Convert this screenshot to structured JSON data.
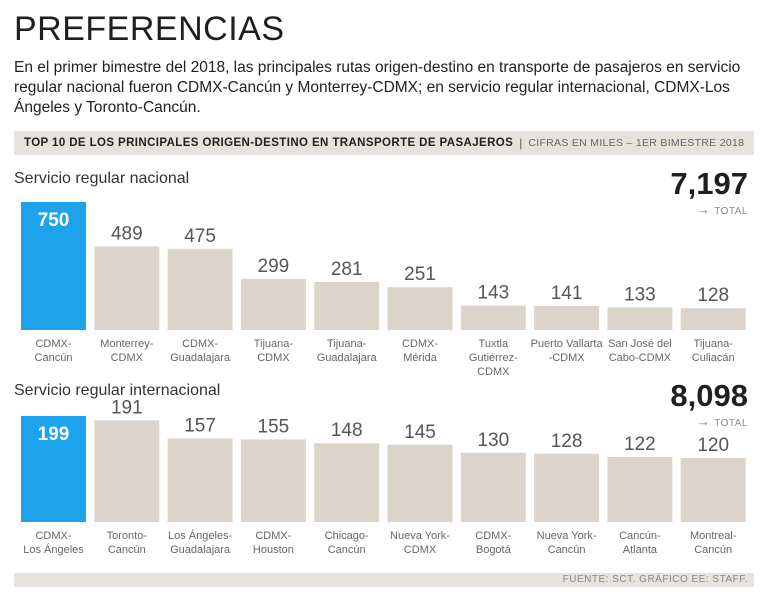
{
  "header": {
    "title": "PREFERENCIAS",
    "intro": "En el primer bimestre del 2018, las principales rutas origen-destino en transporte de pasajeros en servicio regular nacional fueron CDMX-Cancún y Monterrey-CDMX; en servicio regular internacional, CDMX-Los Ángeles y Toronto-Cancún."
  },
  "banner": {
    "title": "TOP 10 DE LOS PRINCIPALES ORIGEN-DESTINO EN TRANSPORTE DE PASAJEROS",
    "separator": "|",
    "note": "CIFRAS EN MILES – 1ER BIMESTRE 2018"
  },
  "colors": {
    "highlight": "#1ca3ec",
    "bar": "#dbd4cb",
    "value_text": "#555555",
    "label_text": "#666666"
  },
  "chart_data": [
    {
      "type": "bar",
      "title": "Servicio regular nacional",
      "total_value": "7,197",
      "total_label": "TOTAL",
      "total_arrow": "→",
      "categories": [
        [
          "CDMX-",
          "Cancún"
        ],
        [
          "Monterrey-",
          "CDMX"
        ],
        [
          "CDMX-",
          "Guadalajara"
        ],
        [
          "Tijuana-",
          "CDMX"
        ],
        [
          "Tijuana-",
          "Guadalajara"
        ],
        [
          "CDMX-",
          "Mérida"
        ],
        [
          "Tuxtla",
          "Gutiérrez-",
          "CDMX"
        ],
        [
          "Puerto Vallarta",
          "-CDMX"
        ],
        [
          "San José del",
          "Cabo-CDMX"
        ],
        [
          "Tijuana-",
          "Culiacán"
        ]
      ],
      "values": [
        750,
        489,
        475,
        299,
        281,
        251,
        143,
        141,
        133,
        128
      ],
      "value_labels": [
        "750",
        "489",
        "475",
        "299",
        "281",
        "251",
        "143",
        "141",
        "133",
        "128"
      ],
      "highlight_index": 0,
      "ylim": [
        0,
        750
      ]
    },
    {
      "type": "bar",
      "title": "Servicio regular internacional",
      "total_value": "8,098",
      "total_label": "TOTAL",
      "total_arrow": "→",
      "categories": [
        [
          "CDMX-",
          "Los Ángeles"
        ],
        [
          "Toronto-",
          "Cancún"
        ],
        [
          "Los Ángeles-",
          "Guadalajara"
        ],
        [
          "CDMX-",
          "Houston"
        ],
        [
          "Chicago-",
          "Cancún"
        ],
        [
          "Nueva York-",
          "CDMX"
        ],
        [
          "CDMX-",
          "Bogotá"
        ],
        [
          "Nueva York-",
          "Cancún"
        ],
        [
          "Cancún-",
          "Atlanta"
        ],
        [
          "Montreal-",
          "Cancún"
        ]
      ],
      "values": [
        199,
        191,
        157,
        155,
        148,
        145,
        130,
        128,
        122,
        120
      ],
      "value_labels": [
        "199",
        "191",
        "157",
        "155",
        "148",
        "145",
        "130",
        "128",
        "122",
        "120"
      ],
      "highlight_index": 0,
      "ylim": [
        0,
        199
      ]
    }
  ],
  "footer": {
    "source": "FUENTE: SCT.  GRÁFICO EE: STAFF."
  }
}
